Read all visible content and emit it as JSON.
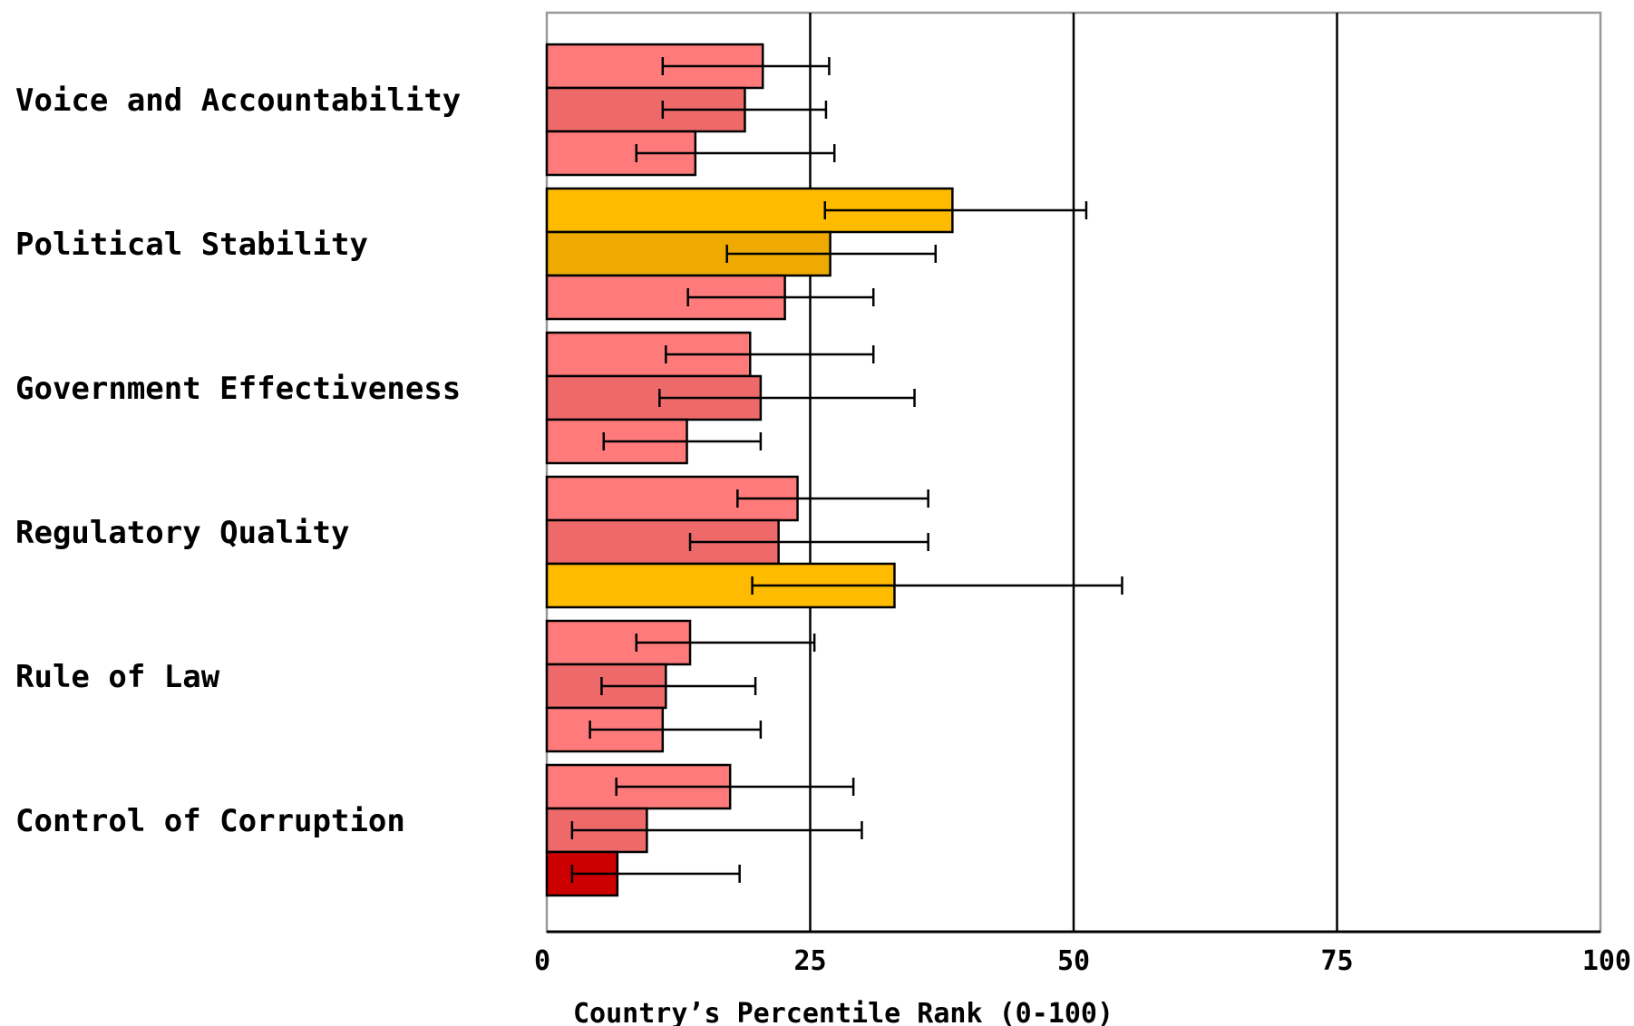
{
  "chart_data": {
    "type": "bar",
    "orientation": "horizontal",
    "xlabel": "Country’s Percentile Rank (0-100)",
    "xlim": [
      0,
      100
    ],
    "xticks": [
      "0",
      "25",
      "50",
      "75",
      "100"
    ],
    "grid": "vertical",
    "categories": [
      "Voice and Accountability",
      "Political Stability",
      "Government Effectiveness",
      "Regulatory Quality",
      "Rule of Law",
      "Control of Corruption"
    ],
    "bars_per_category": [
      [
        {
          "value": 20.5,
          "low": 11,
          "high": 26.8,
          "color": "#ff7b7b"
        },
        {
          "value": 18.8,
          "low": 11,
          "high": 26.5,
          "color": "#ee6a6a"
        },
        {
          "value": 14.1,
          "low": 8.5,
          "high": 27.3,
          "color": "#ff7b7b"
        }
      ],
      [
        {
          "value": 38.5,
          "low": 26.4,
          "high": 51.2,
          "color": "#ffbb00"
        },
        {
          "value": 26.9,
          "low": 17.1,
          "high": 36.9,
          "color": "#eeaa00"
        },
        {
          "value": 22.6,
          "low": 13.4,
          "high": 31.0,
          "color": "#ff7b7b"
        }
      ],
      [
        {
          "value": 19.3,
          "low": 11.3,
          "high": 31.0,
          "color": "#ff7b7b"
        },
        {
          "value": 20.3,
          "low": 10.7,
          "high": 34.9,
          "color": "#ee6a6a"
        },
        {
          "value": 13.3,
          "low": 5.4,
          "high": 20.3,
          "color": "#ff7b7b"
        }
      ],
      [
        {
          "value": 23.8,
          "low": 18.1,
          "high": 36.2,
          "color": "#ff7b7b"
        },
        {
          "value": 22.0,
          "low": 13.6,
          "high": 36.2,
          "color": "#ee6a6a"
        },
        {
          "value": 33.0,
          "low": 19.5,
          "high": 54.6,
          "color": "#ffbb00"
        }
      ],
      [
        {
          "value": 13.6,
          "low": 8.5,
          "high": 25.4,
          "color": "#ff7b7b"
        },
        {
          "value": 11.3,
          "low": 5.2,
          "high": 19.8,
          "color": "#ee6a6a"
        },
        {
          "value": 11.0,
          "low": 4.1,
          "high": 20.3,
          "color": "#ff7b7b"
        }
      ],
      [
        {
          "value": 17.4,
          "low": 6.6,
          "high": 29.1,
          "color": "#ff7b7b"
        },
        {
          "value": 9.5,
          "low": 2.4,
          "high": 29.9,
          "color": "#ee6a6a"
        },
        {
          "value": 6.7,
          "low": 2.4,
          "high": 18.3,
          "color": "#cc0000"
        }
      ]
    ]
  }
}
